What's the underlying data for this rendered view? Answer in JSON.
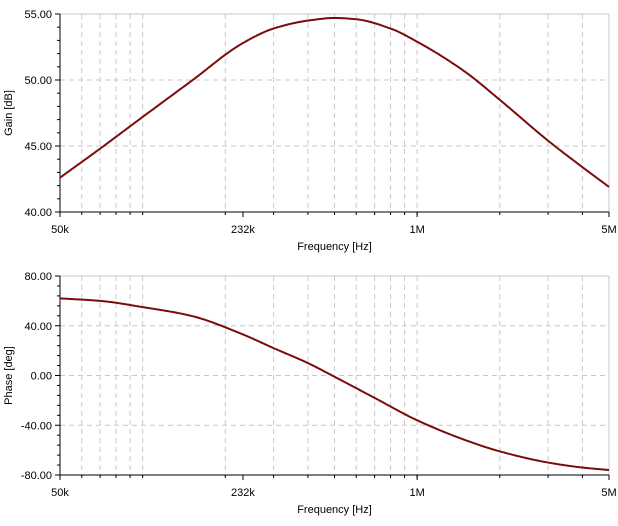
{
  "colors": {
    "curve": "#7a0c0c",
    "grid": "#c8c8c8",
    "axis": "#000000",
    "background": "#ffffff"
  },
  "chart_data": [
    {
      "type": "line",
      "xscale": "log",
      "xlim": [
        50000,
        5000000
      ],
      "ylim": [
        40,
        55
      ],
      "xlabel": "Frequency [Hz]",
      "ylabel": "Gain [dB]",
      "grid": true,
      "x_tick_labels": [
        {
          "value": 50000,
          "label": "50k"
        },
        {
          "value": 232000,
          "label": "232k"
        },
        {
          "value": 1000000,
          "label": "1M"
        },
        {
          "value": 5000000,
          "label": "5M"
        }
      ],
      "y_tick_labels": [
        {
          "value": 40,
          "label": "40.00"
        },
        {
          "value": 45,
          "label": "45.00"
        },
        {
          "value": 50,
          "label": "50.00"
        },
        {
          "value": 55,
          "label": "55.00"
        }
      ],
      "series": [
        {
          "x": [
            50000,
            70000,
            100000,
            150000,
            232000,
            300000,
            400000,
            500000,
            600000,
            800000,
            1000000,
            1500000,
            2000000,
            3000000,
            4000000,
            5000000
          ],
          "y": [
            42.6,
            44.8,
            47.2,
            49.9,
            52.8,
            53.9,
            54.5,
            54.7,
            54.6,
            53.9,
            52.9,
            50.6,
            48.5,
            45.4,
            43.4,
            41.9
          ]
        }
      ]
    },
    {
      "type": "line",
      "xscale": "log",
      "xlim": [
        50000,
        5000000
      ],
      "ylim": [
        -80,
        80
      ],
      "xlabel": "Frequency [Hz]",
      "ylabel": "Phase [deg]",
      "grid": true,
      "x_tick_labels": [
        {
          "value": 50000,
          "label": "50k"
        },
        {
          "value": 232000,
          "label": "232k"
        },
        {
          "value": 1000000,
          "label": "1M"
        },
        {
          "value": 5000000,
          "label": "5M"
        }
      ],
      "y_tick_labels": [
        {
          "value": -80,
          "label": "-80.00"
        },
        {
          "value": -40,
          "label": "-40.00"
        },
        {
          "value": 0,
          "label": "0.00"
        },
        {
          "value": 40,
          "label": "40.00"
        },
        {
          "value": 80,
          "label": "80.00"
        }
      ],
      "series": [
        {
          "x": [
            50000,
            70000,
            100000,
            150000,
            232000,
            300000,
            400000,
            500000,
            700000,
            1000000,
            1500000,
            2000000,
            3000000,
            4000000,
            5000000
          ],
          "y": [
            62,
            60,
            55,
            48,
            33,
            22,
            10,
            -1,
            -18,
            -36,
            -52,
            -61,
            -70,
            -74,
            -76
          ]
        }
      ]
    }
  ]
}
